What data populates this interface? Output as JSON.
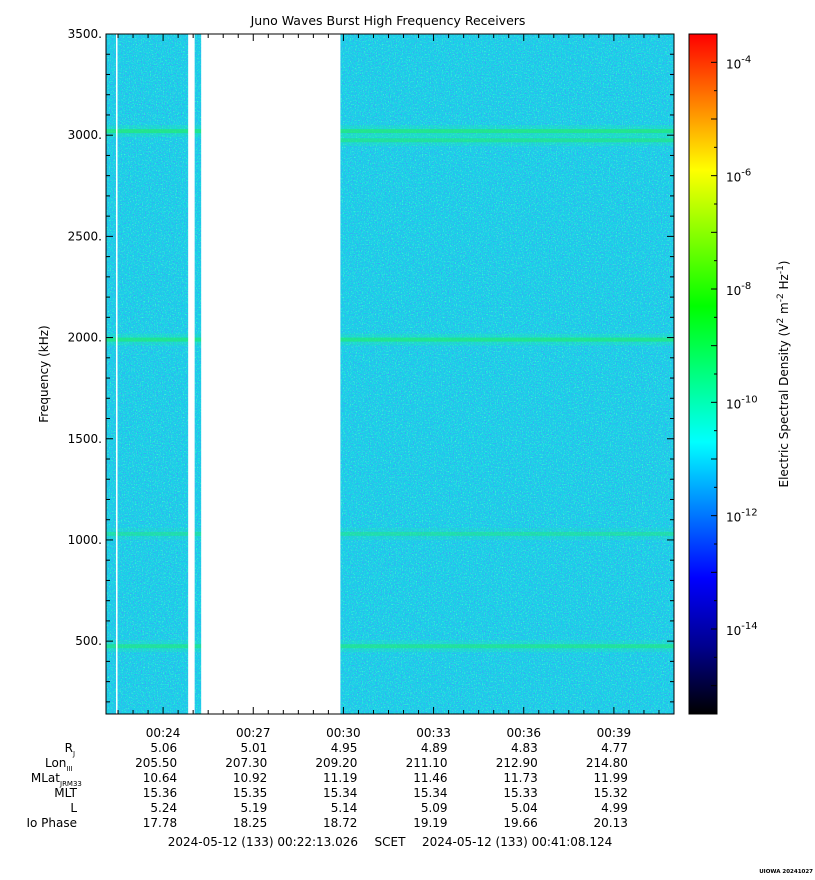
{
  "chart_data": {
    "type": "heatmap",
    "title": "Juno Waves Burst High Frequency Receivers",
    "ylabel": "Frequency (kHz)",
    "ylim": [
      140,
      3500
    ],
    "yticks": [
      500,
      1000,
      1500,
      2000,
      2500,
      3000,
      3500
    ],
    "ytick_labels": [
      "500.",
      "1000.",
      "1500.",
      "2000.",
      "2500.",
      "3000.",
      "3500."
    ],
    "xlim_minutes": [
      22.1,
      41.0
    ],
    "xticks_minutes": [
      24,
      27,
      30,
      33,
      36,
      39
    ],
    "xtick_labels": [
      "00:24",
      "00:27",
      "00:30",
      "00:33",
      "00:36",
      "00:39"
    ],
    "data_gaps": [
      {
        "start": "00:22:26",
        "end": "00:22:27"
      },
      {
        "start": "00:24:50",
        "end": "00:25:03"
      },
      {
        "start": "00:25:16",
        "end": "00:29:54"
      }
    ],
    "bands": [
      {
        "freq_khz": 3020,
        "level": 0.62,
        "x_from": 22.1,
        "x_to": 41.0
      },
      {
        "freq_khz": 2975,
        "level": 0.5,
        "x_from": 29.9,
        "x_to": 41.0
      },
      {
        "freq_khz": 1990,
        "level": 0.6,
        "x_from": 22.1,
        "x_to": 41.0
      },
      {
        "freq_khz": 1030,
        "level": 0.38,
        "x_from": 22.1,
        "x_to": 41.0
      },
      {
        "freq_khz": 475,
        "level": 0.5,
        "x_from": 22.1,
        "x_to": 41.0
      }
    ],
    "colorbar": {
      "label": "Electric Spectral Density (V",
      "label_sup1": "2",
      "label_mid": " m",
      "label_sup2": "-2",
      "label_end": " Hz",
      "label_sup3": "-1",
      "label_close": ")",
      "log_range": [
        -15.5,
        -3.5
      ],
      "ticks": [
        {
          "exp": -4,
          "base": "10",
          "sup": "-4"
        },
        {
          "exp": -6,
          "base": "10",
          "sup": "-6"
        },
        {
          "exp": -8,
          "base": "10",
          "sup": "-8"
        },
        {
          "exp": -10,
          "base": "10",
          "sup": "-10"
        },
        {
          "exp": -12,
          "base": "10",
          "sup": "-12"
        },
        {
          "exp": -14,
          "base": "10",
          "sup": "-14"
        }
      ],
      "colors": [
        "#000000",
        "#00008f",
        "#0000ff",
        "#0080ff",
        "#00ffff",
        "#00ff80",
        "#00ff00",
        "#80ff00",
        "#ffff00",
        "#ff8000",
        "#ff0000"
      ]
    },
    "ephemeris": {
      "rows": [
        {
          "label": "R",
          "sub": "J",
          "values": [
            "5.06",
            "5.01",
            "4.95",
            "4.89",
            "4.83",
            "4.77"
          ]
        },
        {
          "label": "Lon",
          "sub": "III",
          "values": [
            "205.50",
            "207.30",
            "209.20",
            "211.10",
            "212.90",
            "214.80"
          ]
        },
        {
          "label": "MLat",
          "sub": "JRM33",
          "values": [
            "10.64",
            "10.92",
            "11.19",
            "11.46",
            "11.73",
            "11.99"
          ]
        },
        {
          "label": "MLT",
          "sub": "",
          "values": [
            "15.36",
            "15.35",
            "15.34",
            "15.34",
            "15.33",
            "15.32"
          ]
        },
        {
          "label": "L",
          "sub": "",
          "values": [
            "5.24",
            "5.19",
            "5.14",
            "5.09",
            "5.04",
            "4.99"
          ]
        },
        {
          "label": "Io Phase",
          "sub": "",
          "values": [
            "17.78",
            "18.25",
            "18.72",
            "19.19",
            "19.66",
            "20.13"
          ]
        }
      ]
    },
    "time_range": {
      "start": "2024-05-12 (133) 00:22:13.026",
      "scet": "SCET",
      "end": "2024-05-12 (133) 00:41:08.124"
    },
    "footer_tag": "UIOWA 20241027"
  }
}
